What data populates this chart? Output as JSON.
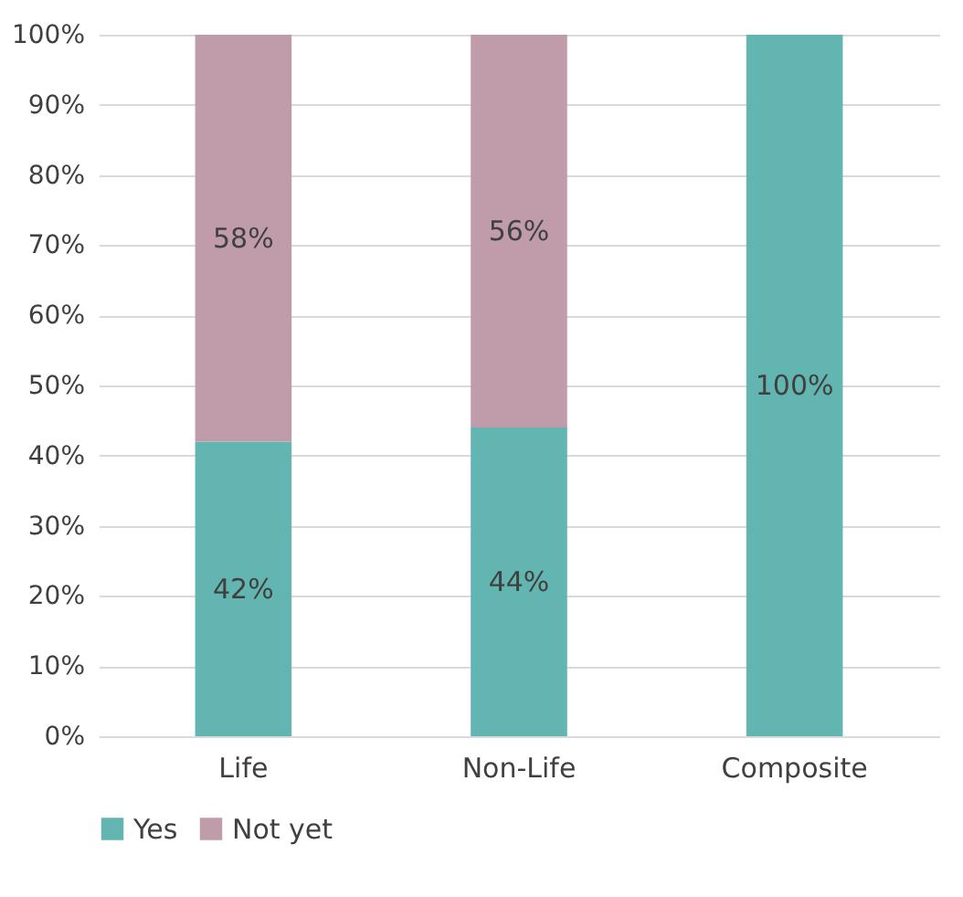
{
  "chart_data": {
    "type": "bar",
    "stacked": true,
    "categories": [
      "Life",
      "Non-Life",
      "Composite"
    ],
    "series": [
      {
        "name": "Yes",
        "color": "#62b5b0",
        "values": [
          42,
          44,
          100
        ],
        "value_labels": [
          "42%",
          "44%",
          "100%"
        ]
      },
      {
        "name": "Not yet",
        "color": "#c09cab",
        "values": [
          58,
          56,
          0
        ],
        "value_labels": [
          "58%",
          "56%",
          null
        ]
      }
    ],
    "ylim": [
      0,
      100
    ],
    "yticks": [
      {
        "value": 0,
        "label": "0%"
      },
      {
        "value": 10,
        "label": "10%"
      },
      {
        "value": 20,
        "label": "20%"
      },
      {
        "value": 30,
        "label": "30%"
      },
      {
        "value": 40,
        "label": "40%"
      },
      {
        "value": 50,
        "label": "50%"
      },
      {
        "value": 60,
        "label": "60%"
      },
      {
        "value": 70,
        "label": "70%"
      },
      {
        "value": 80,
        "label": "80%"
      },
      {
        "value": 90,
        "label": "90%"
      },
      {
        "value": 100,
        "label": "100%"
      }
    ],
    "grid": "y",
    "legend": "bottom"
  }
}
